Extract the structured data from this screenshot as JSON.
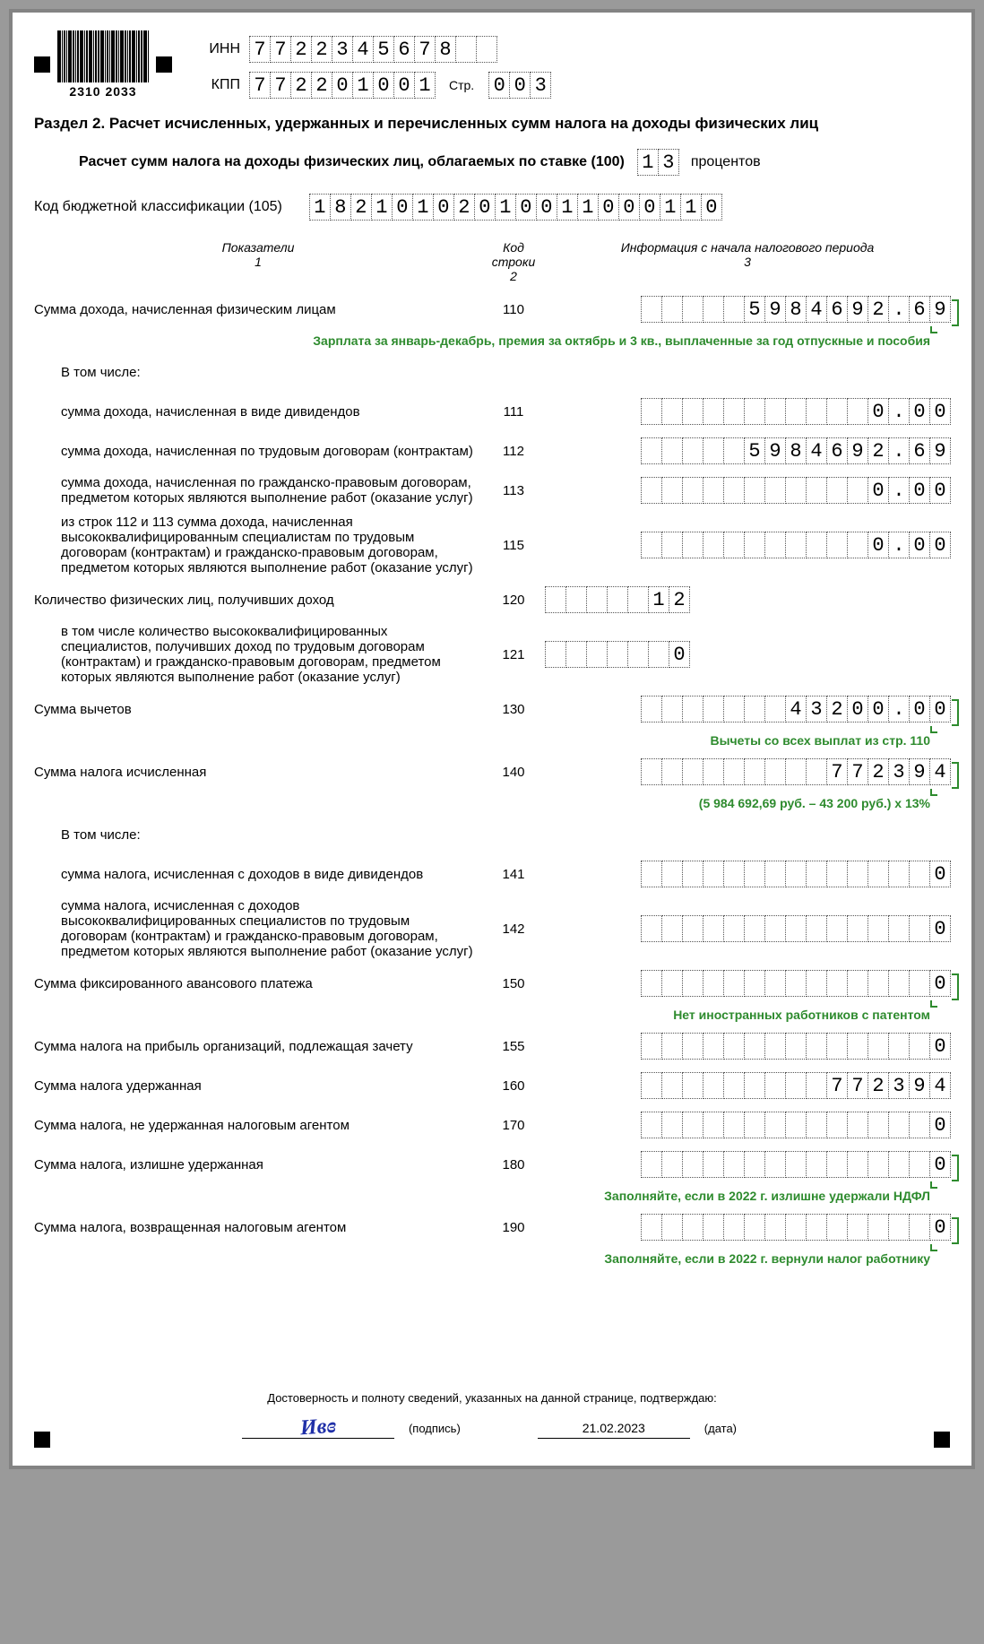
{
  "barcode_number": "2310 2033",
  "inn_label": "ИНН",
  "inn": [
    "7",
    "7",
    "2",
    "2",
    "3",
    "4",
    "5",
    "6",
    "7",
    "8",
    "",
    ""
  ],
  "kpp_label": "КПП",
  "kpp": [
    "7",
    "7",
    "2",
    "2",
    "0",
    "1",
    "0",
    "0",
    "1"
  ],
  "page_label": "Стр.",
  "page": [
    "0",
    "0",
    "3"
  ],
  "section_title": "Раздел 2. Расчет исчисленных, удержанных и перечисленных сумм налога на доходы физических лиц",
  "rate_label": "Расчет сумм налога на доходы физических лиц, облагаемых по ставке (100)",
  "rate": [
    "1",
    "3"
  ],
  "percent_word": "процентов",
  "kbk_label": "Код бюджетной классификации (105)",
  "kbk": [
    "1",
    "8",
    "2",
    "1",
    "0",
    "1",
    "0",
    "2",
    "0",
    "1",
    "0",
    "0",
    "1",
    "1",
    "0",
    "0",
    "0",
    "1",
    "1",
    "0"
  ],
  "col_headers": {
    "c1": "Показатели\n1",
    "c2": "Код\nстроки\n2",
    "c3": "Информация с начала налогового периода\n3"
  },
  "lines": [
    {
      "label": "Сумма дохода, начисленная физическим лицам",
      "code": "110",
      "cells": 15,
      "value": "5984692.69",
      "indent": false,
      "annot": "Зарплата за январь-декабрь, премия за октябрь и 3 кв., выплаченные за год отпускные и пособия",
      "bracket": true
    },
    {
      "label": "В том числе:",
      "code": "",
      "cells": 0,
      "value": "",
      "indent": true
    },
    {
      "label": "сумма дохода, начисленная в виде дивидендов",
      "code": "111",
      "cells": 15,
      "value": "0.00",
      "indent": true
    },
    {
      "label": "сумма дохода, начисленная по трудовым договорам (контрактам)",
      "code": "112",
      "cells": 15,
      "value": "5984692.69",
      "indent": true
    },
    {
      "label": "сумма дохода, начисленная по гражданско-правовым договорам, предметом которых являются выполнение работ (оказание услуг)",
      "code": "113",
      "cells": 15,
      "value": "0.00",
      "indent": true
    },
    {
      "label": "из строк 112 и 113 сумма дохода, начисленная высококвалифицированным специалистам по трудовым договорам (контрактам) и гражданско-правовым договорам, предметом которых являются выполнение работ (оказание услуг)",
      "code": "115",
      "cells": 15,
      "value": "0.00",
      "indent": true
    },
    {
      "label": "Количество физических лиц, получивших доход",
      "code": "120",
      "cells": 7,
      "value": "12",
      "indent": false,
      "align": "left"
    },
    {
      "label": "в том числе количество высококвалифицированных специалистов, получивших доход по трудовым договорам (контрактам) и гражданско-правовым договорам, предметом которых являются выполнение работ (оказание услуг)",
      "code": "121",
      "cells": 7,
      "value": "0",
      "indent": true,
      "align": "left"
    },
    {
      "label": "Сумма вычетов",
      "code": "130",
      "cells": 15,
      "value": "43200.00",
      "indent": false,
      "annot": "Вычеты со всех выплат из стр. 110",
      "bracket": true
    },
    {
      "label": "Сумма налога исчисленная",
      "code": "140",
      "cells": 15,
      "value": "772394",
      "indent": false,
      "annot": "(5 984 692,69 руб. – 43 200 руб.) х 13%",
      "bracket": true
    },
    {
      "label": "В том числе:",
      "code": "",
      "cells": 0,
      "value": "",
      "indent": true
    },
    {
      "label": "сумма налога, исчисленная с доходов в виде дивидендов",
      "code": "141",
      "cells": 15,
      "value": "0",
      "indent": true
    },
    {
      "label": "сумма налога, исчисленная с доходов высококвалифицированных специалистов по трудовым договорам (контрактам) и гражданско-правовым договорам, предметом которых являются выполнение работ (оказание услуг)",
      "code": "142",
      "cells": 15,
      "value": "0",
      "indent": true
    },
    {
      "label": "Сумма фиксированного авансового платежа",
      "code": "150",
      "cells": 15,
      "value": "0",
      "indent": false,
      "annot": "Нет иностранных работников с патентом",
      "bracket": true
    },
    {
      "label": "Сумма налога на прибыль организаций, подлежащая зачету",
      "code": "155",
      "cells": 15,
      "value": "0",
      "indent": false
    },
    {
      "label": "Сумма налога удержанная",
      "code": "160",
      "cells": 15,
      "value": "772394",
      "indent": false
    },
    {
      "label": "Сумма налога, не удержанная налоговым агентом",
      "code": "170",
      "cells": 15,
      "value": "0",
      "indent": false
    },
    {
      "label": "Сумма налога, излишне удержанная",
      "code": "180",
      "cells": 15,
      "value": "0",
      "indent": false,
      "annot": "Заполняйте, если в 2022 г. излишне удержали НДФЛ",
      "bracket": true
    },
    {
      "label": "Сумма налога, возвращенная налоговым агентом",
      "code": "190",
      "cells": 15,
      "value": "0",
      "indent": false,
      "annot": "Заполняйте, если в 2022 г. вернули налог работнику",
      "bracket": true
    }
  ],
  "footer_text": "Достоверность и полноту сведений, указанных на данной странице, подтверждаю:",
  "sign_caption": "(подпись)",
  "date_value": "21.02.2023",
  "date_caption": "(дата)",
  "colors": {
    "annotation": "#2e8b2e",
    "signature": "#2030a8",
    "border": "#838383",
    "cell_border": "#555555"
  }
}
